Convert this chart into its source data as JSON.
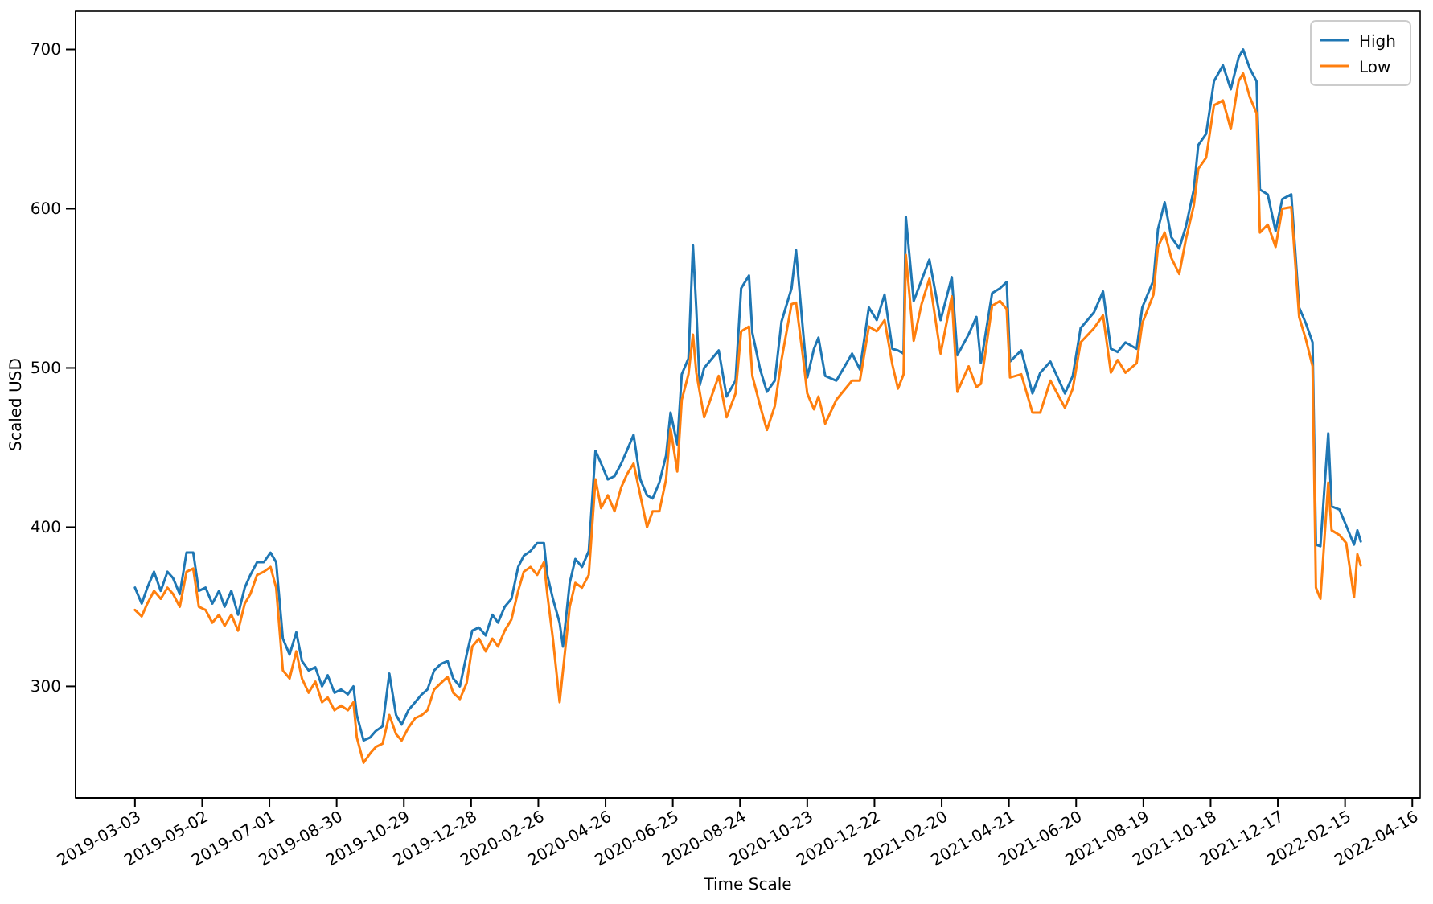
{
  "chart_data": {
    "type": "line",
    "xlabel": "Time Scale",
    "ylabel": "Scaled USD",
    "legend": "top right",
    "grid": false,
    "x": [
      "2019-03-03",
      "2019-03-09",
      "2019-03-14",
      "2019-03-20",
      "2019-03-26",
      "2019-04-01",
      "2019-04-06",
      "2019-04-12",
      "2019-04-18",
      "2019-04-24",
      "2019-04-29",
      "2019-05-05",
      "2019-05-11",
      "2019-05-17",
      "2019-05-22",
      "2019-05-28",
      "2019-06-03",
      "2019-06-09",
      "2019-06-14",
      "2019-06-20",
      "2019-06-26",
      "2019-07-02",
      "2019-07-07",
      "2019-07-13",
      "2019-07-19",
      "2019-07-25",
      "2019-07-30",
      "2019-08-05",
      "2019-08-11",
      "2019-08-17",
      "2019-08-22",
      "2019-08-28",
      "2019-09-03",
      "2019-09-09",
      "2019-09-14",
      "2019-09-17",
      "2019-09-23",
      "2019-09-29",
      "2019-10-04",
      "2019-10-10",
      "2019-10-16",
      "2019-10-22",
      "2019-10-27",
      "2019-11-02",
      "2019-11-08",
      "2019-11-14",
      "2019-11-19",
      "2019-11-25",
      "2019-12-01",
      "2019-12-07",
      "2019-12-12",
      "2019-12-18",
      "2019-12-24",
      "2019-12-29",
      "2020-01-04",
      "2020-01-10",
      "2020-01-16",
      "2020-01-21",
      "2020-01-27",
      "2020-02-02",
      "2020-02-08",
      "2020-02-13",
      "2020-02-19",
      "2020-02-25",
      "2020-03-02",
      "2020-03-05",
      "2020-03-10",
      "2020-03-16",
      "2020-03-19",
      "2020-03-25",
      "2020-03-30",
      "2020-04-05",
      "2020-04-11",
      "2020-04-17",
      "2020-04-22",
      "2020-04-28",
      "2020-05-04",
      "2020-05-10",
      "2020-05-15",
      "2020-05-21",
      "2020-05-27",
      "2020-06-02",
      "2020-06-07",
      "2020-06-13",
      "2020-06-19",
      "2020-06-23",
      "2020-06-29",
      "2020-07-03",
      "2020-07-09",
      "2020-07-13",
      "2020-07-16",
      "2020-07-19",
      "2020-07-23",
      "2020-08-05",
      "2020-08-12",
      "2020-08-20",
      "2020-08-25",
      "2020-09-01",
      "2020-09-04",
      "2020-09-11",
      "2020-09-17",
      "2020-09-24",
      "2020-09-30",
      "2020-10-09",
      "2020-10-13",
      "2020-10-19",
      "2020-10-23",
      "2020-10-29",
      "2020-11-02",
      "2020-11-08",
      "2020-11-18",
      "2020-12-02",
      "2020-12-09",
      "2020-12-17",
      "2020-12-24",
      "2020-12-31",
      "2021-01-07",
      "2021-01-12",
      "2021-01-17",
      "2021-01-19",
      "2021-01-26",
      "2021-02-02",
      "2021-02-09",
      "2021-02-19",
      "2021-03-01",
      "2021-03-06",
      "2021-03-16",
      "2021-03-23",
      "2021-03-27",
      "2021-04-06",
      "2021-04-13",
      "2021-04-19",
      "2021-04-22",
      "2021-05-02",
      "2021-05-12",
      "2021-05-19",
      "2021-05-28",
      "2021-06-10",
      "2021-06-17",
      "2021-06-24",
      "2021-07-06",
      "2021-07-14",
      "2021-07-21",
      "2021-07-27",
      "2021-08-03",
      "2021-08-13",
      "2021-08-18",
      "2021-08-28",
      "2021-09-01",
      "2021-09-07",
      "2021-09-13",
      "2021-09-20",
      "2021-09-26",
      "2021-10-03",
      "2021-10-07",
      "2021-10-14",
      "2021-10-21",
      "2021-10-29",
      "2021-11-05",
      "2021-11-12",
      "2021-11-16",
      "2021-11-22",
      "2021-11-28",
      "2021-12-01",
      "2021-12-08",
      "2021-12-15",
      "2021-12-21",
      "2021-12-29",
      "2022-01-05",
      "2022-01-11",
      "2022-01-17",
      "2022-01-20",
      "2022-01-24",
      "2022-01-31",
      "2022-02-03",
      "2022-02-10",
      "2022-02-16",
      "2022-02-23",
      "2022-02-26",
      "2022-03-01"
    ],
    "xlim": [
      "2019-01-09",
      "2022-04-23"
    ],
    "xticks": [
      "2019-03-03",
      "2019-05-02",
      "2019-07-01",
      "2019-08-30",
      "2019-10-29",
      "2019-12-28",
      "2020-02-26",
      "2020-04-26",
      "2020-06-25",
      "2020-08-24",
      "2020-10-23",
      "2020-12-22",
      "2021-02-20",
      "2021-04-21",
      "2021-06-20",
      "2021-08-19",
      "2021-10-18",
      "2021-12-17",
      "2022-02-15",
      "2022-04-16"
    ],
    "ylim": [
      230,
      724
    ],
    "yticks": [
      300,
      400,
      500,
      600,
      700
    ],
    "series": [
      {
        "name": "High",
        "color": "#1f77b4",
        "values": [
          362,
          352,
          362,
          372,
          360,
          372,
          368,
          358,
          384,
          384,
          360,
          362,
          352,
          360,
          350,
          360,
          345,
          362,
          370,
          378,
          378,
          384,
          378,
          330,
          320,
          334,
          316,
          310,
          312,
          300,
          307,
          296,
          298,
          295,
          300,
          282,
          266,
          268,
          272,
          275,
          308,
          282,
          276,
          285,
          290,
          295,
          298,
          310,
          314,
          316,
          305,
          300,
          320,
          335,
          337,
          332,
          345,
          340,
          350,
          355,
          375,
          382,
          385,
          390,
          390,
          370,
          355,
          340,
          325,
          365,
          380,
          375,
          385,
          448,
          440,
          430,
          432,
          440,
          448,
          458,
          430,
          420,
          418,
          428,
          445,
          472,
          452,
          496,
          506,
          577,
          537,
          489,
          500,
          511,
          482,
          492,
          550,
          558,
          522,
          499,
          485,
          492,
          529,
          550,
          574,
          525,
          494,
          512,
          519,
          495,
          492,
          509,
          499,
          538,
          530,
          546,
          512,
          511,
          509,
          595,
          542,
          555,
          568,
          530,
          557,
          508,
          521,
          532,
          503,
          547,
          550,
          554,
          504,
          511,
          484,
          497,
          504,
          484,
          495,
          525,
          535,
          548,
          512,
          510,
          516,
          512,
          538,
          555,
          587,
          604,
          582,
          575,
          589,
          612,
          640,
          647,
          680,
          690,
          675,
          695,
          700,
          688,
          680,
          612,
          609,
          586,
          606,
          609,
          538,
          528,
          516,
          389,
          388,
          459,
          413,
          411,
          401,
          389,
          398,
          391
        ]
      },
      {
        "name": "Low",
        "color": "#ff7f0e",
        "values": [
          348,
          344,
          352,
          360,
          355,
          362,
          358,
          350,
          372,
          374,
          350,
          348,
          340,
          345,
          338,
          345,
          335,
          352,
          358,
          370,
          372,
          375,
          362,
          310,
          305,
          322,
          305,
          296,
          303,
          290,
          293,
          285,
          288,
          285,
          290,
          268,
          252,
          258,
          262,
          264,
          282,
          270,
          266,
          274,
          280,
          282,
          285,
          298,
          302,
          306,
          296,
          292,
          302,
          325,
          330,
          322,
          330,
          325,
          335,
          342,
          360,
          372,
          375,
          370,
          378,
          358,
          330,
          290,
          310,
          350,
          365,
          362,
          370,
          430,
          412,
          420,
          410,
          425,
          433,
          440,
          420,
          400,
          410,
          410,
          430,
          462,
          435,
          480,
          496,
          521,
          497,
          485,
          469,
          495,
          469,
          484,
          523,
          526,
          495,
          476,
          461,
          476,
          505,
          540,
          541,
          508,
          484,
          474,
          482,
          465,
          480,
          492,
          492,
          526,
          523,
          530,
          502,
          487,
          496,
          571,
          517,
          540,
          556,
          509,
          545,
          485,
          501,
          488,
          490,
          539,
          542,
          537,
          494,
          496,
          472,
          472,
          492,
          475,
          487,
          516,
          525,
          533,
          497,
          505,
          497,
          503,
          528,
          546,
          576,
          585,
          569,
          559,
          581,
          602,
          625,
          632,
          665,
          668,
          650,
          680,
          685,
          670,
          660,
          585,
          590,
          576,
          600,
          601,
          532,
          518,
          501,
          362,
          355,
          428,
          398,
          395,
          390,
          356,
          383,
          376
        ]
      }
    ]
  }
}
